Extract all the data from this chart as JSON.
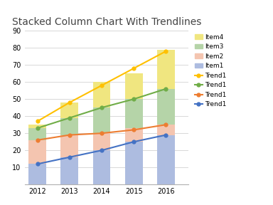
{
  "title": "Stacked Column Chart With Trendlines",
  "years": [
    2012,
    2013,
    2014,
    2015,
    2016
  ],
  "item1": [
    12,
    16,
    20,
    25,
    29
  ],
  "item2": [
    14,
    13,
    10,
    8,
    6
  ],
  "item3": [
    7,
    10,
    15,
    17,
    21
  ],
  "item4": [
    2,
    9,
    15,
    15,
    23
  ],
  "trend_blue": [
    12,
    16,
    20,
    25,
    29
  ],
  "trend_orange": [
    26,
    29,
    30,
    32,
    35
  ],
  "trend_green": [
    33,
    39,
    45,
    50,
    56
  ],
  "trend_yellow": [
    37,
    48,
    58,
    68,
    78
  ],
  "color_item1": "#adbce0",
  "color_item2": "#f4c5b0",
  "color_item3": "#b5d4a8",
  "color_item4": "#f0e680",
  "color_trend_blue": "#4472c4",
  "color_trend_orange": "#ed7d31",
  "color_trend_green": "#70ad47",
  "color_trend_yellow": "#ffc000",
  "ylim": [
    0,
    90
  ],
  "yticks": [
    0,
    10,
    20,
    30,
    40,
    50,
    60,
    70,
    80,
    90
  ],
  "bar_width": 0.55,
  "background_color": "#ffffff",
  "grid_color": "#d8d8d8",
  "title_fontsize": 10,
  "tick_fontsize": 7
}
